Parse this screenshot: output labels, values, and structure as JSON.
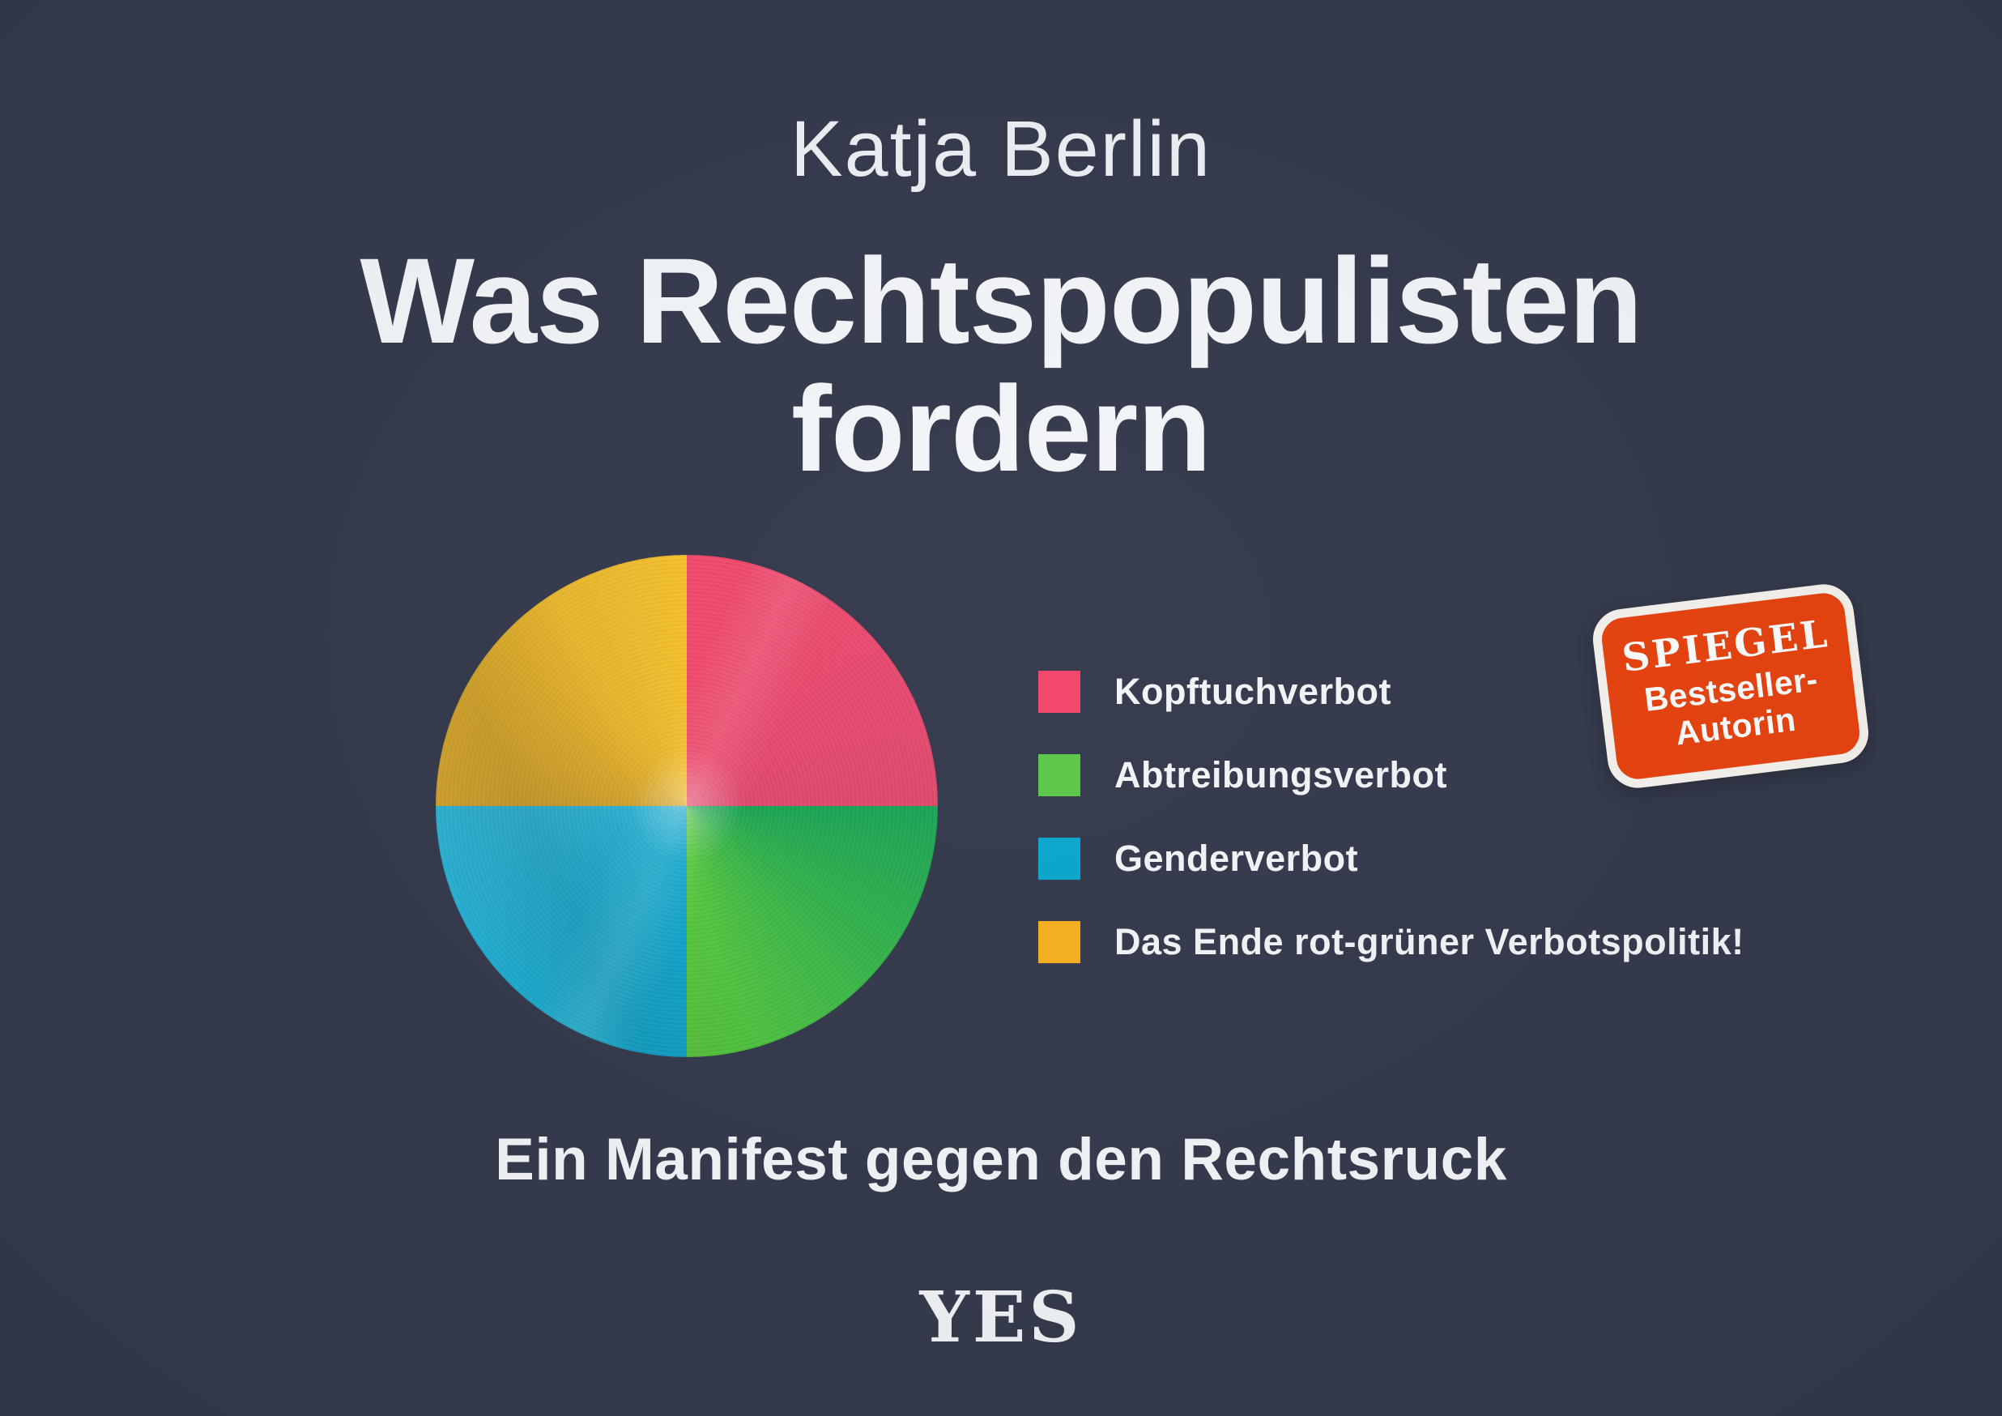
{
  "cover": {
    "author": "Katja Berlin",
    "title_line1": "Was Rechtspopulisten",
    "title_line2": "fordern",
    "subtitle": "Ein Manifest gegen den Rechtsruck",
    "publisher_logo": "YES",
    "badge": {
      "line1": "SPIEGEL",
      "line2": "Bestseller-",
      "line3": "Autorin"
    },
    "colors": {
      "background": "#343a4c",
      "text": "#f4f7fa",
      "badge_orange": "#e8430f",
      "badge_border": "#f7f4ef"
    }
  },
  "chart_data": {
    "type": "pie",
    "title": "Was Rechtspopulisten fordern",
    "legend_position": "right",
    "slices": [
      {
        "label": "Kopftuchverbot",
        "value": 25,
        "color": "#f2456a",
        "color_start": "#f4486c",
        "color_end": "#e0486e"
      },
      {
        "label": "Abtreibungsverbot",
        "value": 25,
        "color": "#5cc94a",
        "color_start": "#18a455",
        "color_end": "#5acb3c"
      },
      {
        "label": "Genderverbot",
        "value": 25,
        "color": "#0aa6cd",
        "color_start": "#0fa8cf",
        "color_end": "#2eb5d7"
      },
      {
        "label": "Das Ende rot-grüner Verbotspolitik!",
        "value": 25,
        "color": "#f8b01f",
        "color_start": "#d4a42c",
        "color_end": "#f7c12b"
      }
    ]
  }
}
